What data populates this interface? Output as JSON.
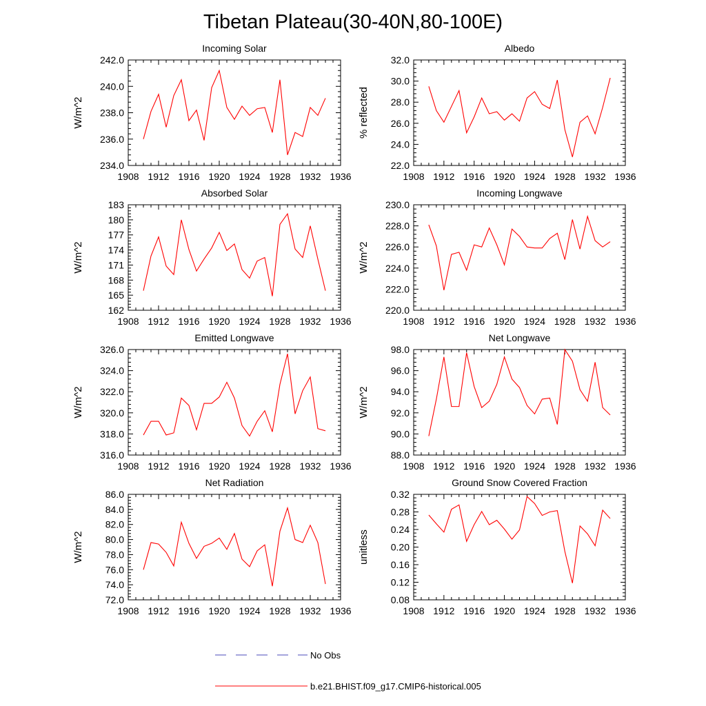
{
  "figure": {
    "title": "Tibetan Plateau(30-40N,80-100E)"
  },
  "legend": {
    "entries": [
      {
        "label": "No Obs",
        "color": "#4a4ab8",
        "style": "dashed"
      },
      {
        "label": "b.e21.BHIST.f09_g17.CMIP6-historical.005",
        "color": "#ff0000",
        "style": "solid"
      }
    ]
  },
  "chart_data": [
    {
      "id": "incoming-solar",
      "type": "line",
      "title": "Incoming Solar",
      "ylabel": "W/m^2",
      "xlim": [
        1908,
        1936
      ],
      "ylim": [
        234.0,
        242.0
      ],
      "xticks": [
        "1908",
        "1912",
        "1916",
        "1920",
        "1924",
        "1928",
        "1932",
        "1936"
      ],
      "yticks": [
        "234.0",
        "236.0",
        "238.0",
        "240.0",
        "242.0"
      ],
      "series": [
        {
          "name": "b.e21.BHIST.f09_g17.CMIP6-historical.005",
          "color": "#ff0000",
          "x": [
            1910,
            1911,
            1912,
            1913,
            1914,
            1915,
            1916,
            1917,
            1918,
            1919,
            1920,
            1921,
            1922,
            1923,
            1924,
            1925,
            1926,
            1927,
            1928,
            1929,
            1930,
            1931,
            1932,
            1933,
            1934
          ],
          "values": [
            236.0,
            238.1,
            239.4,
            236.9,
            239.3,
            240.5,
            237.4,
            238.2,
            235.9,
            239.9,
            241.2,
            238.4,
            237.5,
            238.5,
            237.8,
            238.3,
            238.4,
            236.5,
            240.5,
            234.8,
            236.5,
            236.2,
            238.4,
            237.8,
            239.1
          ]
        }
      ]
    },
    {
      "id": "albedo",
      "type": "line",
      "title": "Albedo",
      "ylabel": "% reflected",
      "xlim": [
        1908,
        1936
      ],
      "ylim": [
        22.0,
        32.0
      ],
      "xticks": [
        "1908",
        "1912",
        "1916",
        "1920",
        "1924",
        "1928",
        "1932",
        "1936"
      ],
      "yticks": [
        "22.0",
        "24.0",
        "26.0",
        "28.0",
        "30.0",
        "32.0"
      ],
      "series": [
        {
          "name": "b.e21.BHIST.f09_g17.CMIP6-historical.005",
          "color": "#ff0000",
          "x": [
            1910,
            1911,
            1912,
            1913,
            1914,
            1915,
            1916,
            1917,
            1918,
            1919,
            1920,
            1921,
            1922,
            1923,
            1924,
            1925,
            1926,
            1927,
            1928,
            1929,
            1930,
            1931,
            1932,
            1933,
            1934
          ],
          "values": [
            29.5,
            27.2,
            26.1,
            27.6,
            29.1,
            25.1,
            26.6,
            28.4,
            26.9,
            27.1,
            26.3,
            26.9,
            26.2,
            28.4,
            29.0,
            27.8,
            27.4,
            30.1,
            25.4,
            22.8,
            26.1,
            26.7,
            25.0,
            27.5,
            30.3
          ]
        }
      ]
    },
    {
      "id": "absorbed-solar",
      "type": "line",
      "title": "Absorbed Solar",
      "ylabel": "W/m^2",
      "xlim": [
        1908,
        1936
      ],
      "ylim": [
        162,
        183
      ],
      "xticks": [
        "1908",
        "1912",
        "1916",
        "1920",
        "1924",
        "1928",
        "1932",
        "1936"
      ],
      "yticks": [
        "162",
        "165",
        "168",
        "171",
        "174",
        "177",
        "180",
        "183"
      ],
      "series": [
        {
          "name": "b.e21.BHIST.f09_g17.CMIP6-historical.005",
          "color": "#ff0000",
          "x": [
            1910,
            1911,
            1912,
            1913,
            1914,
            1915,
            1916,
            1917,
            1918,
            1919,
            1920,
            1921,
            1922,
            1923,
            1924,
            1925,
            1926,
            1927,
            1928,
            1929,
            1930,
            1931,
            1932,
            1933,
            1934
          ],
          "values": [
            165.9,
            172.8,
            176.6,
            170.8,
            169.1,
            180.0,
            174.1,
            169.8,
            172.2,
            174.4,
            177.5,
            173.9,
            175.2,
            170.1,
            168.4,
            171.8,
            172.5,
            164.8,
            179.1,
            181.2,
            174.2,
            172.5,
            178.8,
            172.2,
            165.9
          ]
        }
      ]
    },
    {
      "id": "incoming-longwave",
      "type": "line",
      "title": "Incoming Longwave",
      "ylabel": "W/m^2",
      "xlim": [
        1908,
        1936
      ],
      "ylim": [
        220.0,
        230.0
      ],
      "xticks": [
        "1908",
        "1912",
        "1916",
        "1920",
        "1924",
        "1928",
        "1932",
        "1936"
      ],
      "yticks": [
        "220.0",
        "222.0",
        "224.0",
        "226.0",
        "228.0",
        "230.0"
      ],
      "series": [
        {
          "name": "b.e21.BHIST.f09_g17.CMIP6-historical.005",
          "color": "#ff0000",
          "x": [
            1910,
            1911,
            1912,
            1913,
            1914,
            1915,
            1916,
            1917,
            1918,
            1919,
            1920,
            1921,
            1922,
            1923,
            1924,
            1925,
            1926,
            1927,
            1928,
            1929,
            1930,
            1931,
            1932,
            1933,
            1934
          ],
          "values": [
            228.1,
            226.1,
            221.9,
            225.3,
            225.5,
            223.8,
            226.2,
            226.0,
            227.8,
            226.2,
            224.3,
            227.7,
            227.0,
            226.0,
            225.9,
            225.9,
            226.8,
            227.3,
            224.8,
            228.6,
            225.8,
            228.9,
            226.6,
            226.0,
            226.5
          ]
        }
      ]
    },
    {
      "id": "emitted-longwave",
      "type": "line",
      "title": "Emitted Longwave",
      "ylabel": "W/m^2",
      "xlim": [
        1908,
        1936
      ],
      "ylim": [
        316.0,
        326.0
      ],
      "xticks": [
        "1908",
        "1912",
        "1916",
        "1920",
        "1924",
        "1928",
        "1932",
        "1936"
      ],
      "yticks": [
        "316.0",
        "318.0",
        "320.0",
        "322.0",
        "324.0",
        "326.0"
      ],
      "series": [
        {
          "name": "b.e21.BHIST.f09_g17.CMIP6-historical.005",
          "color": "#ff0000",
          "x": [
            1910,
            1911,
            1912,
            1913,
            1914,
            1915,
            1916,
            1917,
            1918,
            1919,
            1920,
            1921,
            1922,
            1923,
            1924,
            1925,
            1926,
            1927,
            1928,
            1929,
            1930,
            1931,
            1932,
            1933,
            1934
          ],
          "values": [
            317.9,
            319.2,
            319.2,
            317.9,
            318.1,
            321.4,
            320.7,
            318.4,
            320.9,
            320.9,
            321.5,
            322.9,
            321.4,
            318.8,
            317.8,
            319.2,
            320.2,
            318.2,
            322.7,
            325.6,
            319.9,
            322.1,
            323.4,
            318.5,
            318.3
          ]
        }
      ]
    },
    {
      "id": "net-longwave",
      "type": "line",
      "title": "Net Longwave",
      "ylabel": "W/m^2",
      "xlim": [
        1908,
        1936
      ],
      "ylim": [
        88.0,
        98.0
      ],
      "xticks": [
        "1908",
        "1912",
        "1916",
        "1920",
        "1924",
        "1928",
        "1932",
        "1936"
      ],
      "yticks": [
        "88.0",
        "90.0",
        "92.0",
        "94.0",
        "96.0",
        "98.0"
      ],
      "series": [
        {
          "name": "b.e21.BHIST.f09_g17.CMIP6-historical.005",
          "color": "#ff0000",
          "x": [
            1910,
            1911,
            1912,
            1913,
            1914,
            1915,
            1916,
            1917,
            1918,
            1919,
            1920,
            1921,
            1922,
            1923,
            1924,
            1925,
            1926,
            1927,
            1928,
            1929,
            1930,
            1931,
            1932,
            1933,
            1934
          ],
          "values": [
            89.8,
            93.3,
            97.3,
            92.6,
            92.6,
            97.7,
            94.5,
            92.5,
            93.1,
            94.7,
            97.3,
            95.2,
            94.4,
            92.7,
            91.9,
            93.3,
            93.4,
            90.9,
            98.0,
            96.9,
            94.2,
            93.1,
            96.8,
            92.5,
            91.8
          ]
        }
      ]
    },
    {
      "id": "net-radiation",
      "type": "line",
      "title": "Net Radiation",
      "ylabel": "W/m^2",
      "xlim": [
        1908,
        1936
      ],
      "ylim": [
        72.0,
        86.0
      ],
      "xticks": [
        "1908",
        "1912",
        "1916",
        "1920",
        "1924",
        "1928",
        "1932",
        "1936"
      ],
      "yticks": [
        "72.0",
        "74.0",
        "76.0",
        "78.0",
        "80.0",
        "82.0",
        "84.0",
        "86.0"
      ],
      "series": [
        {
          "name": "b.e21.BHIST.f09_g17.CMIP6-historical.005",
          "color": "#ff0000",
          "x": [
            1910,
            1911,
            1912,
            1913,
            1914,
            1915,
            1916,
            1917,
            1918,
            1919,
            1920,
            1921,
            1922,
            1923,
            1924,
            1925,
            1926,
            1927,
            1928,
            1929,
            1930,
            1931,
            1932,
            1933,
            1934
          ],
          "values": [
            76.0,
            79.6,
            79.4,
            78.3,
            76.5,
            82.3,
            79.5,
            77.5,
            79.1,
            79.5,
            80.2,
            78.7,
            80.8,
            77.4,
            76.4,
            78.5,
            79.3,
            73.8,
            81.1,
            84.2,
            80.0,
            79.6,
            81.9,
            79.6,
            74.1
          ]
        }
      ]
    },
    {
      "id": "ground-snow-covered-fraction",
      "type": "line",
      "title": "Ground Snow Covered Fraction",
      "ylabel": "unitless",
      "xlim": [
        1908,
        1936
      ],
      "ylim": [
        0.08,
        0.32
      ],
      "xticks": [
        "1908",
        "1912",
        "1916",
        "1920",
        "1924",
        "1928",
        "1932",
        "1936"
      ],
      "yticks": [
        "0.08",
        "0.12",
        "0.16",
        "0.20",
        "0.24",
        "0.28",
        "0.32"
      ],
      "series": [
        {
          "name": "b.e21.BHIST.f09_g17.CMIP6-historical.005",
          "color": "#ff0000",
          "x": [
            1910,
            1911,
            1912,
            1913,
            1914,
            1915,
            1916,
            1917,
            1918,
            1919,
            1920,
            1921,
            1922,
            1923,
            1924,
            1925,
            1926,
            1927,
            1928,
            1929,
            1930,
            1931,
            1932,
            1933,
            1934
          ],
          "values": [
            0.273,
            0.253,
            0.234,
            0.286,
            0.296,
            0.213,
            0.251,
            0.281,
            0.251,
            0.261,
            0.241,
            0.218,
            0.239,
            0.315,
            0.299,
            0.272,
            0.28,
            0.283,
            0.19,
            0.118,
            0.248,
            0.23,
            0.203,
            0.284,
            0.265
          ]
        }
      ]
    }
  ]
}
